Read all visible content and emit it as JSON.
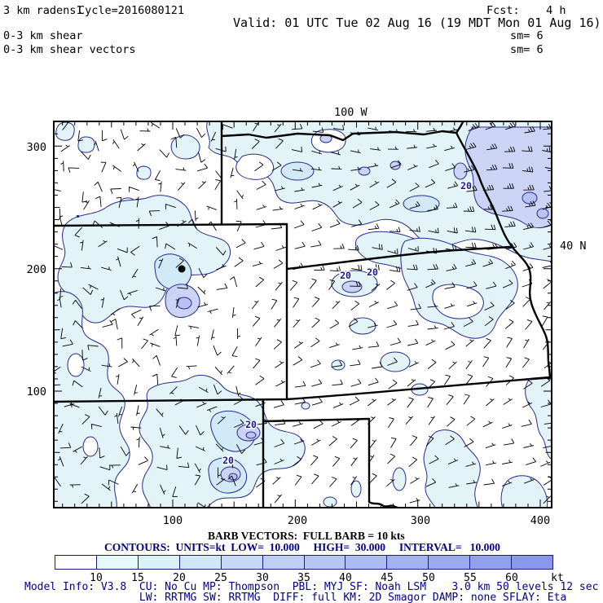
{
  "header": {
    "product": "3 km radens1",
    "cycle": "Cycle=2016080121",
    "fcst": "Fcst:    4 h",
    "valid": "Valid: 01 UTC Tue 02 Aug 16 (19 MDT Mon 01 Aug 16)",
    "field_line1": "0-3 km shear",
    "field_line2": "0-3 km shear vectors",
    "sm_line1": "sm= 6",
    "sm_line2": "sm= 6"
  },
  "map": {
    "top_label": "100 W",
    "right_label": "40 N",
    "x_tick_labels": [
      "100",
      "200",
      "300",
      "400"
    ],
    "y_tick_labels": [
      "300",
      "200",
      "100"
    ],
    "contour_label": "20"
  },
  "legend": {
    "barb_line": "BARB VECTORS:  FULL BARB = 10 kts",
    "contour_line": "CONTOURS:  UNITS=kt  LOW=  10.000     HIGH=  30.000     INTERVAL=   10.000",
    "colorbar_tick_labels": [
      "10",
      "15",
      "20",
      "25",
      "30",
      "35",
      "40",
      "45",
      "50",
      "55",
      "60"
    ],
    "colorbar_unit": "kt",
    "colorbar_colors": [
      "#ffffff",
      "#e7f8f8",
      "#d9f1f7",
      "#cfe7f8",
      "#c7d8f7",
      "#bfcef5",
      "#b6c5f3",
      "#adbcf2",
      "#a4b3f0",
      "#9baaee",
      "#92a1ec",
      "#8998ea"
    ],
    "contour_text_color": "#00008b"
  },
  "model_info": {
    "line1": "Model Info: V3.8  CU: No Cu MP: Thompson  PBL: MYJ SF: Noah LSM    3.0 km 50 levels 12 sec",
    "line2": "                  LW: RRTMG SW: RRTMG  DIFF: full KM: 2D Smagor DAMP: none SFLAY: Eta"
  },
  "chart_data": {
    "type": "contour_map",
    "title": "0-3 km shear with 0-3 km shear vectors",
    "model_cycle": "2016080121",
    "forecast_hour": 4,
    "valid_time": "01 UTC Tue 02 Aug 16 (19 MDT Mon 01 Aug 16)",
    "units": "kt",
    "contour_low": 10,
    "contour_high": 30,
    "contour_interval": 10,
    "labeled_contour_value": 20,
    "colorbar_ticks_kt": [
      10,
      15,
      20,
      25,
      30,
      35,
      40,
      45,
      50,
      55,
      60
    ],
    "barb_full_kt": 10,
    "smoothing_passes": 6,
    "axes": {
      "x_ticks": [
        100,
        200,
        300,
        400
      ],
      "y_ticks": [
        100,
        200,
        300
      ],
      "top_meridian": "100 W",
      "right_parallel": "40 N"
    }
  }
}
